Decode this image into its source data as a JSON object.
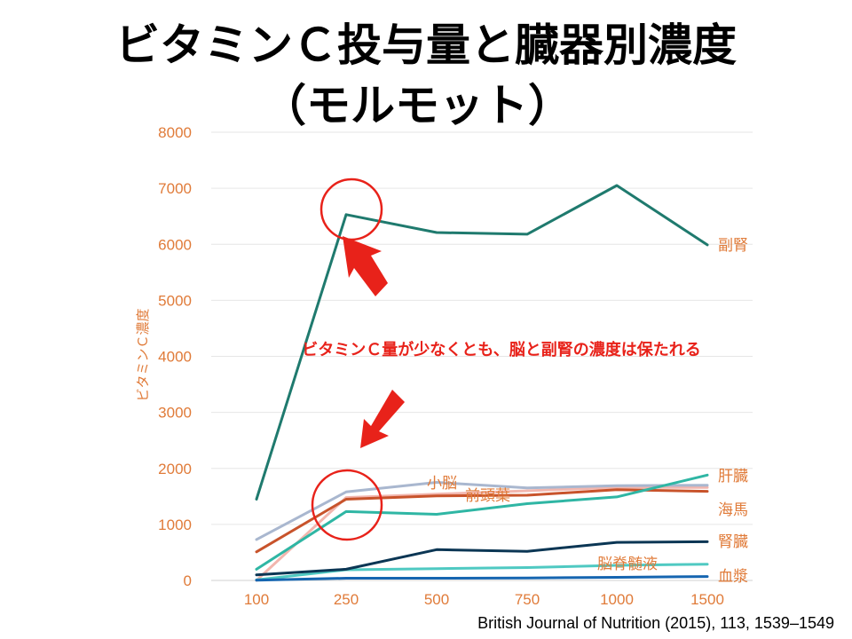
{
  "title_line1": "ビタミンＣ投与量と臓器別濃度",
  "title_line2": "（モルモット）",
  "citation": "British Journal of Nutrition (2015), 113, 1539–1549",
  "annotation": "ビタミンＣ量が少なくとも、脳と副腎の濃度は保たれる",
  "colors": {
    "axis_text": "#e07b39",
    "annotation": "#e8221a",
    "grid": "#e6e6e6"
  },
  "chart_data": {
    "type": "line",
    "title": "",
    "xlabel": "",
    "ylabel": "ビタミンＣ濃度",
    "categories": [
      "100",
      "250",
      "500",
      "750",
      "1000",
      "1500"
    ],
    "ylim": [
      0,
      8000
    ],
    "yticks": [
      0,
      1000,
      2000,
      3000,
      4000,
      5000,
      6000,
      7000,
      8000
    ],
    "grid": true,
    "series": [
      {
        "name": "副腎",
        "color": "#1f7a6e",
        "values": [
          1450,
          6530,
          6210,
          6180,
          7050,
          5990
        ]
      },
      {
        "name": "小脳",
        "color": "#a9b7cf",
        "values": [
          730,
          1580,
          1750,
          1650,
          1690,
          1700
        ]
      },
      {
        "name": "前頭葉",
        "color": "#c8532b",
        "values": [
          510,
          1450,
          1510,
          1520,
          1620,
          1590
        ]
      },
      {
        "name": "肝臓",
        "color": "#2fb6a4",
        "values": [
          200,
          1230,
          1180,
          1370,
          1490,
          1880
        ]
      },
      {
        "name": "海馬",
        "color": "#f2b6ae",
        "values": [
          0,
          1480,
          1540,
          1600,
          1660,
          1660
        ]
      },
      {
        "name": "腎臓",
        "color": "#0b3654",
        "values": [
          100,
          200,
          550,
          520,
          680,
          690
        ]
      },
      {
        "name": "脳脊髄液",
        "color": "#4fc9c2",
        "values": [
          10,
          190,
          210,
          230,
          270,
          290
        ]
      },
      {
        "name": "血漿",
        "color": "#1565b0",
        "values": [
          5,
          40,
          40,
          45,
          55,
          70
        ]
      }
    ]
  }
}
